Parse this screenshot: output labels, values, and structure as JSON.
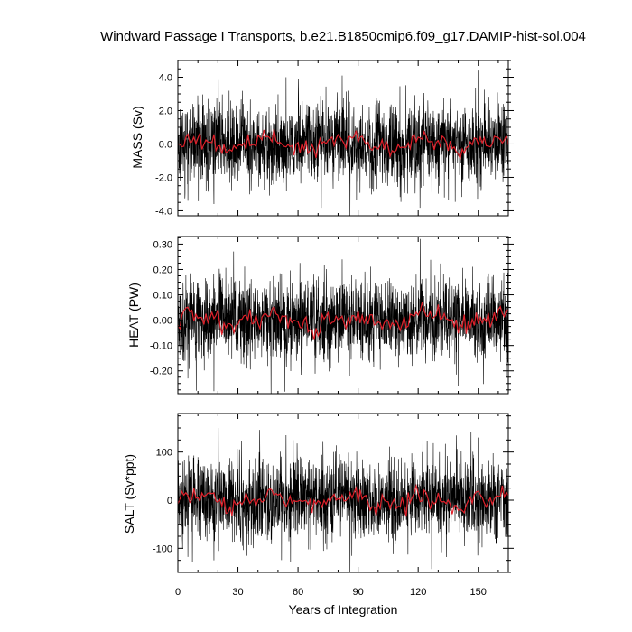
{
  "chart_data": {
    "type": "line",
    "title": "Windward Passage I Transports, b.e21.B1850cmip6.f09_g17.DAMIP-hist-sol.004",
    "xlabel": "Years of Integration",
    "xlim": [
      0,
      165
    ],
    "xticks": [
      "0",
      "30",
      "60",
      "90",
      "120",
      "150"
    ],
    "xtick_values": [
      0,
      30,
      60,
      90,
      120,
      150
    ],
    "panels": [
      {
        "ylabel": "MASS (Sv)",
        "ylim": [
          -4.3,
          5.0
        ],
        "yticks": [
          "-4.0",
          "-2.0",
          "0.0",
          "2.0",
          "4.0"
        ],
        "ytick_values": [
          -4.0,
          -2.0,
          0.0,
          2.0,
          4.0
        ],
        "series": [
          {
            "kind": "monthly",
            "color": "#000000",
            "amplitude": 1.2,
            "spikes": [
              [
                86,
                -4.3
              ],
              [
                99,
                5.0
              ],
              [
                5,
                -3.4
              ],
              [
                18,
                -3.6
              ],
              [
                54,
                4.0
              ],
              [
                82,
                4.1
              ],
              [
                150,
                4.4
              ]
            ]
          },
          {
            "kind": "annual mean",
            "color": "#e0202a",
            "amplitude": 0.35
          }
        ]
      },
      {
        "ylabel": "HEAT (PW)",
        "ylim": [
          -0.29,
          0.33
        ],
        "yticks": [
          "-0.20",
          "-0.10",
          "0.00",
          "0.10",
          "0.20",
          "0.30"
        ],
        "ytick_values": [
          -0.2,
          -0.1,
          0.0,
          0.1,
          0.2,
          0.3
        ],
        "series": [
          {
            "kind": "monthly",
            "color": "#000000",
            "amplitude": 0.08,
            "spikes": [
              [
                18,
                -0.28
              ],
              [
                121,
                0.32
              ],
              [
                140,
                -0.26
              ],
              [
                5,
                -0.23
              ],
              [
                99,
                0.27
              ],
              [
                82,
                0.24
              ]
            ]
          },
          {
            "kind": "annual mean",
            "color": "#e0202a",
            "amplitude": 0.025
          }
        ]
      },
      {
        "ylabel": "SALT (Sv*ppt)",
        "ylim": [
          -150,
          180
        ],
        "yticks": [
          "-100",
          "0",
          "100"
        ],
        "ytick_values": [
          -100,
          0,
          100
        ],
        "series": [
          {
            "kind": "monthly",
            "color": "#000000",
            "amplitude": 42,
            "spikes": [
              [
                86,
                -150
              ],
              [
                99,
                178
              ],
              [
                18,
                -125
              ],
              [
                5,
                -118
              ],
              [
                150,
                130
              ],
              [
                54,
                135
              ]
            ]
          },
          {
            "kind": "annual mean",
            "color": "#e0202a",
            "amplitude": 12
          }
        ]
      }
    ]
  }
}
